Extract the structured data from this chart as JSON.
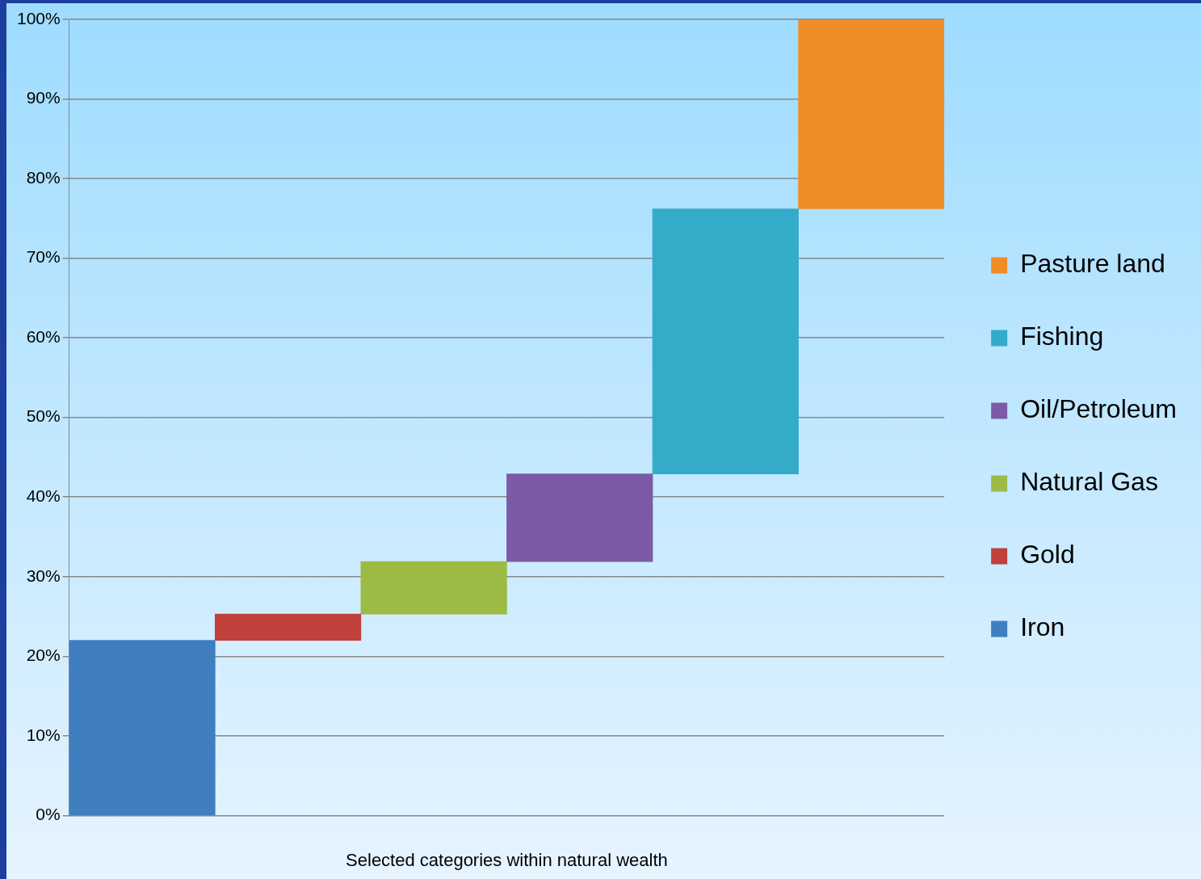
{
  "chart_data": {
    "type": "bar",
    "xlabel": "Selected categories within natural wealth",
    "categories": [
      null,
      null,
      null,
      null,
      null,
      null
    ],
    "series": [
      {
        "name": "Iron",
        "color": "#3f7fc0",
        "values": [
          22,
          null,
          null,
          null,
          null,
          null
        ],
        "base": [
          0,
          null,
          null,
          null,
          null,
          null
        ]
      },
      {
        "name": "Gold",
        "color": "#c0403c",
        "values": [
          null,
          3.3,
          null,
          null,
          null,
          null
        ],
        "base": [
          null,
          22,
          null,
          null,
          null,
          null
        ]
      },
      {
        "name": "Natural Gas",
        "color": "#9bbb45",
        "values": [
          null,
          null,
          6.6,
          null,
          null,
          null
        ],
        "base": [
          null,
          null,
          25.3,
          null,
          null,
          null
        ]
      },
      {
        "name": "Oil/Petroleum",
        "color": "#7b5ba6",
        "values": [
          null,
          null,
          null,
          11,
          null,
          null
        ],
        "base": [
          null,
          null,
          null,
          31.9,
          null,
          null
        ]
      },
      {
        "name": "Fishing",
        "color": "#34abc8",
        "values": [
          null,
          null,
          null,
          null,
          33.3,
          null
        ],
        "base": [
          null,
          null,
          null,
          null,
          42.9,
          null
        ]
      },
      {
        "name": "Pasture land",
        "color": "#f08c28",
        "values": [
          null,
          null,
          null,
          null,
          null,
          23.8
        ],
        "base": [
          null,
          null,
          null,
          null,
          null,
          76.2
        ]
      }
    ],
    "ylim": [
      0,
      100
    ],
    "yticks": [
      {
        "value": 0,
        "label": "0%"
      },
      {
        "value": 10,
        "label": "10%"
      },
      {
        "value": 20,
        "label": "20%"
      },
      {
        "value": 30,
        "label": "30%"
      },
      {
        "value": 40,
        "label": "40%"
      },
      {
        "value": 50,
        "label": "50%"
      },
      {
        "value": 60,
        "label": "60%"
      },
      {
        "value": 70,
        "label": "70%"
      },
      {
        "value": 80,
        "label": "80%"
      },
      {
        "value": 90,
        "label": "90%"
      },
      {
        "value": 100,
        "label": "100%"
      }
    ],
    "grid": "y",
    "legend": "right"
  }
}
